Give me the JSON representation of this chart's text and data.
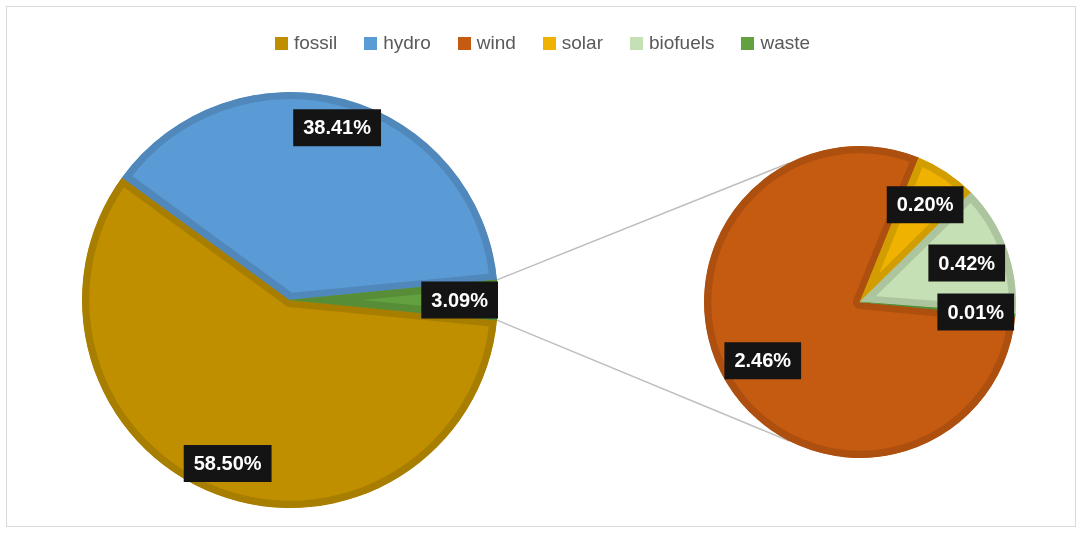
{
  "chart_data": [
    {
      "type": "pie",
      "categories": [
        "fossil",
        "hydro",
        null
      ],
      "values": [
        58.5,
        38.41,
        3.09
      ],
      "colors": [
        "#bf8f00",
        "#5b9bd5",
        "#63a03f"
      ],
      "value_labels": [
        "58.50%",
        "38.41%",
        "3.09%"
      ],
      "legend": "top"
    },
    {
      "type": "pie",
      "categories": [
        "wind",
        "solar",
        "biofuels",
        "waste"
      ],
      "values": [
        2.46,
        0.2,
        0.42,
        0.01
      ],
      "colors": [
        "#c55a11",
        "#efb200",
        "#c5e0b4",
        "#63a03f"
      ],
      "value_labels": [
        "2.46%",
        "0.20%",
        "0.42%",
        "0.01%"
      ],
      "legend": "top"
    }
  ]
}
